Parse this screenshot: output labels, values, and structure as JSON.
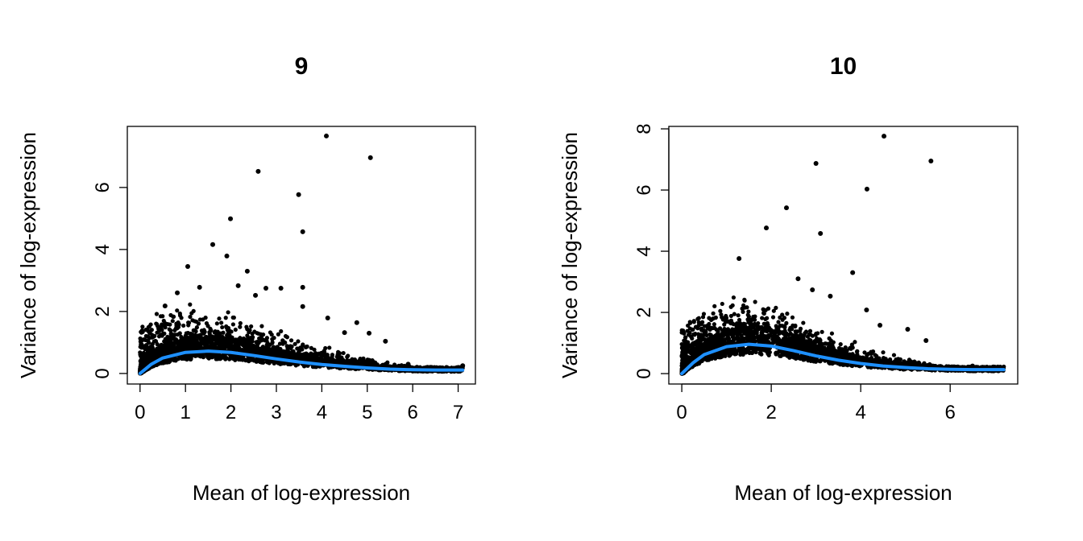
{
  "chart_data": [
    {
      "type": "scatter",
      "title": "9",
      "xlabel": "Mean of log-expression",
      "ylabel": "Variance of log-expression",
      "xlim": [
        -0.28,
        7.38
      ],
      "ylim": [
        -0.34,
        7.97
      ],
      "xticks": [
        0,
        1,
        2,
        3,
        4,
        5,
        6,
        7
      ],
      "yticks": [
        0,
        2,
        4,
        6
      ],
      "grid": false,
      "point_color": "#000000",
      "trend_color": "#1E90FF",
      "points": [
        [
          4.1,
          7.66
        ],
        [
          5.07,
          6.96
        ],
        [
          2.6,
          6.52
        ],
        [
          3.49,
          5.77
        ],
        [
          3.58,
          4.57
        ],
        [
          1.99,
          4.99
        ],
        [
          1.6,
          4.16
        ],
        [
          1.91,
          3.79
        ],
        [
          1.05,
          3.45
        ],
        [
          2.36,
          3.3
        ],
        [
          3.58,
          2.78
        ],
        [
          3.58,
          2.16
        ],
        [
          4.13,
          1.79
        ],
        [
          4.77,
          1.64
        ],
        [
          5.04,
          1.3
        ],
        [
          4.5,
          1.32
        ],
        [
          5.4,
          1.04
        ],
        [
          3.1,
          2.75
        ],
        [
          2.77,
          2.75
        ],
        [
          2.54,
          2.52
        ],
        [
          2.16,
          2.83
        ],
        [
          1.31,
          2.78
        ],
        [
          0.82,
          2.6
        ],
        [
          0.55,
          2.18
        ],
        [
          7.1,
          0.25
        ],
        [
          6.4,
          0.2
        ],
        [
          5.9,
          0.3
        ]
      ],
      "trend": [
        [
          0,
          0
        ],
        [
          0.25,
          0.3
        ],
        [
          0.5,
          0.5
        ],
        [
          1,
          0.68
        ],
        [
          1.5,
          0.72
        ],
        [
          2,
          0.68
        ],
        [
          2.5,
          0.58
        ],
        [
          3,
          0.47
        ],
        [
          3.5,
          0.37
        ],
        [
          4,
          0.29
        ],
        [
          4.5,
          0.23
        ],
        [
          5,
          0.18
        ],
        [
          5.5,
          0.14
        ],
        [
          6,
          0.12
        ],
        [
          6.5,
          0.11
        ],
        [
          7.1,
          0.11
        ]
      ]
    },
    {
      "type": "scatter",
      "title": "10",
      "xlabel": "Mean of log-expression",
      "ylabel": "Variance of log-expression",
      "xlim": [
        -0.29,
        7.51
      ],
      "ylim": [
        -0.34,
        8.08
      ],
      "xticks": [
        0,
        2,
        4,
        6
      ],
      "yticks": [
        0,
        2,
        4,
        6,
        8
      ],
      "grid": false,
      "point_color": "#000000",
      "trend_color": "#1E90FF",
      "points": [
        [
          4.52,
          7.76
        ],
        [
          5.57,
          6.95
        ],
        [
          3.0,
          6.87
        ],
        [
          4.14,
          6.03
        ],
        [
          2.34,
          5.42
        ],
        [
          3.1,
          4.58
        ],
        [
          1.89,
          4.76
        ],
        [
          1.28,
          3.76
        ],
        [
          4.13,
          2.08
        ],
        [
          4.43,
          1.58
        ],
        [
          5.05,
          1.45
        ],
        [
          3.82,
          3.3
        ],
        [
          2.6,
          3.1
        ],
        [
          2.92,
          2.74
        ],
        [
          3.32,
          2.53
        ],
        [
          5.46,
          1.08
        ],
        [
          7.1,
          0.2
        ],
        [
          6.5,
          0.25
        ]
      ],
      "trend": [
        [
          0,
          0
        ],
        [
          0.25,
          0.35
        ],
        [
          0.5,
          0.62
        ],
        [
          1,
          0.88
        ],
        [
          1.5,
          0.96
        ],
        [
          2,
          0.9
        ],
        [
          2.5,
          0.75
        ],
        [
          3,
          0.58
        ],
        [
          3.5,
          0.44
        ],
        [
          4,
          0.33
        ],
        [
          4.5,
          0.25
        ],
        [
          5,
          0.2
        ],
        [
          5.5,
          0.16
        ],
        [
          6,
          0.14
        ],
        [
          6.5,
          0.13
        ],
        [
          7.2,
          0.13
        ]
      ]
    }
  ]
}
